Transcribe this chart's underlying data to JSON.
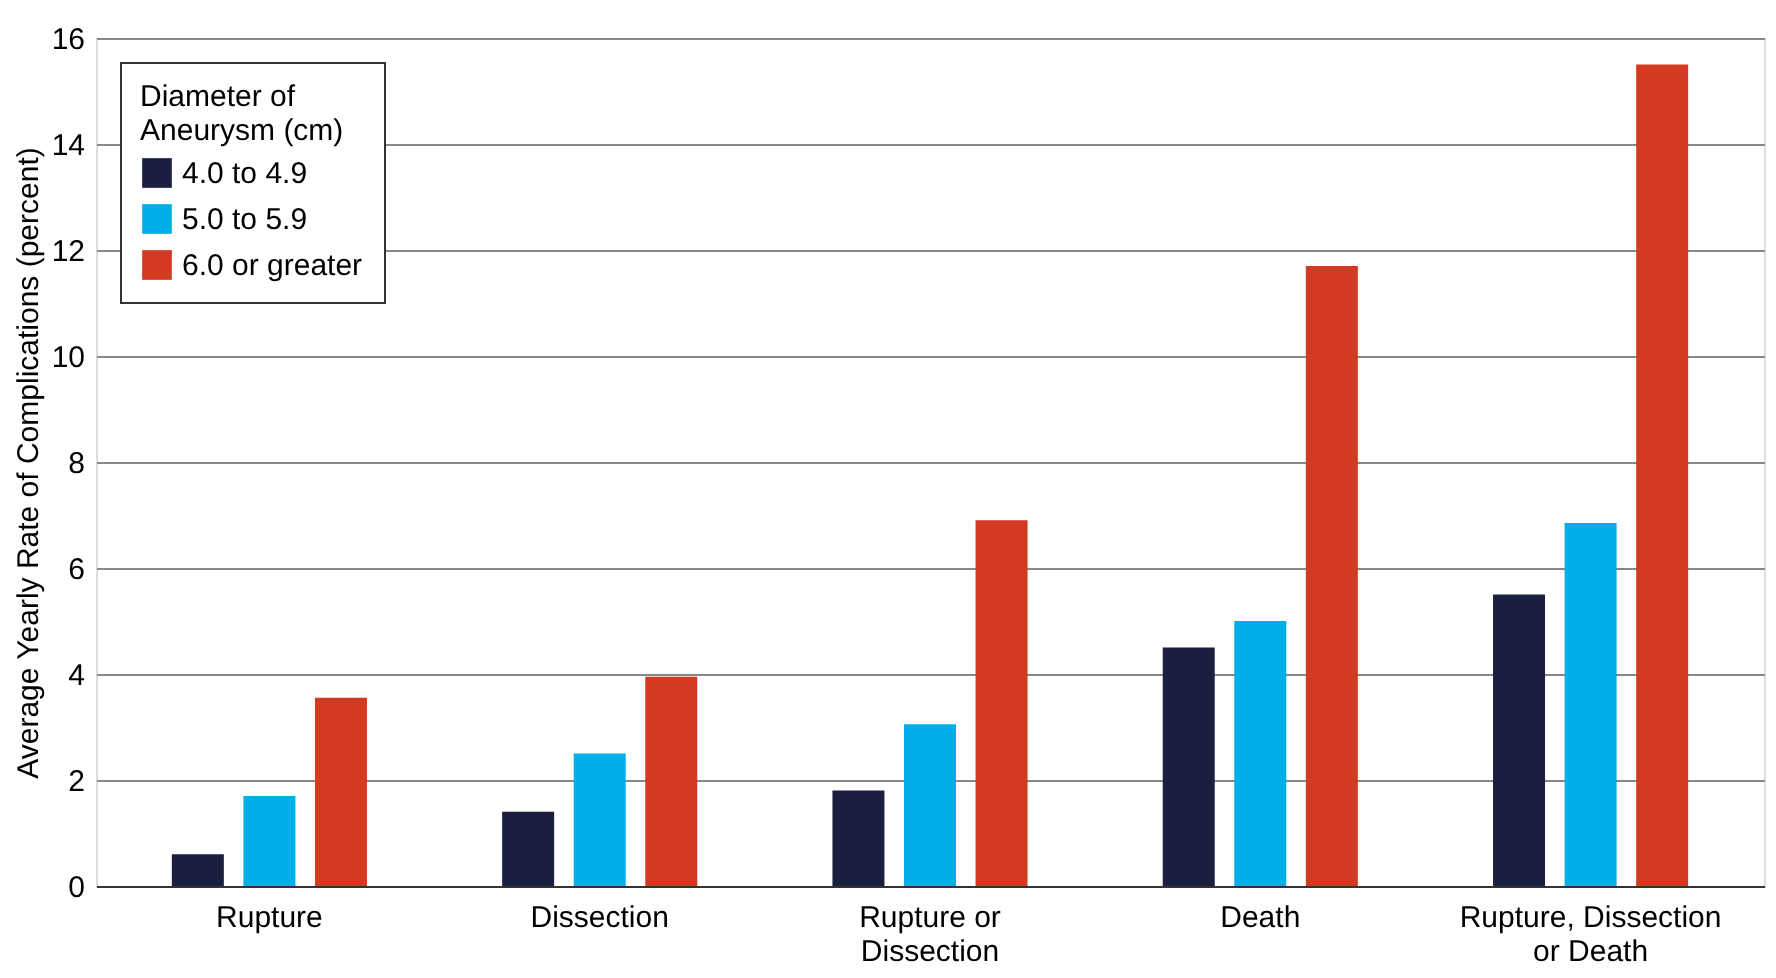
{
  "chart_data": {
    "type": "bar",
    "ylabel": "Average Yearly Rate of Complications (percent)",
    "legend_title": "Diameter of\nAneurysm (cm)",
    "categories": [
      "Rupture",
      "Dissection",
      "Rupture or\nDissection",
      "Death",
      "Rupture, Dissection\nor Death"
    ],
    "series": [
      {
        "name": "4.0 to 4.9",
        "color": "#1a1f3f",
        "values": [
          0.6,
          1.4,
          1.8,
          4.5,
          5.5
        ]
      },
      {
        "name": "5.0 to 5.9",
        "color": "#00aee8",
        "values": [
          1.7,
          2.5,
          3.05,
          5.0,
          6.85
        ]
      },
      {
        "name": "6.0 or greater",
        "color": "#d23a22",
        "values": [
          3.55,
          3.95,
          6.9,
          11.7,
          15.5
        ]
      }
    ],
    "ylim": [
      0,
      16
    ],
    "yticks": [
      0,
      2,
      4,
      6,
      8,
      10,
      12,
      14,
      16
    ],
    "grid": "y",
    "legend": "top left"
  }
}
